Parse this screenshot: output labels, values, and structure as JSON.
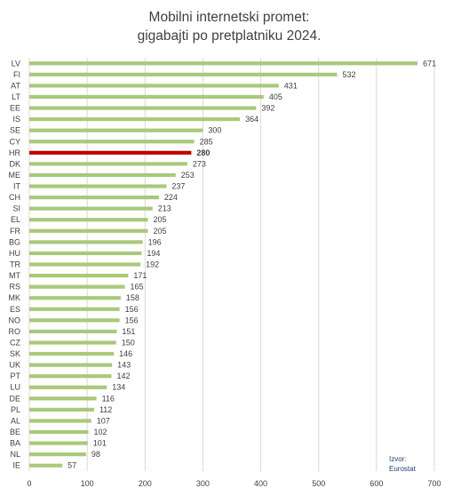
{
  "chart_data": {
    "type": "bar",
    "orientation": "horizontal",
    "title_lines": [
      "Mobilni internetski promet:",
      "gigabajti po pretplatniku 2024."
    ],
    "categories": [
      "LV",
      "FI",
      "AT",
      "LT",
      "EE",
      "IS",
      "SE",
      "CY",
      "HR",
      "DK",
      "ME",
      "IT",
      "CH",
      "SI",
      "EL",
      "FR",
      "BG",
      "HU",
      "TR",
      "MT",
      "RS",
      "MK",
      "ES",
      "NO",
      "RO",
      "CZ",
      "SK",
      "UK",
      "PT",
      "LU",
      "DE",
      "PL",
      "AL",
      "BE",
      "BA",
      "NL",
      "IE"
    ],
    "values": [
      671,
      532,
      431,
      405,
      392,
      364,
      300,
      285,
      280,
      273,
      253,
      237,
      224,
      213,
      205,
      205,
      196,
      194,
      192,
      171,
      165,
      158,
      156,
      156,
      151,
      150,
      146,
      143,
      142,
      134,
      116,
      112,
      107,
      102,
      101,
      98,
      57
    ],
    "highlight": "HR",
    "xlim": [
      0,
      700
    ],
    "xticks": [
      "0",
      "100",
      "200",
      "300",
      "400",
      "500",
      "600",
      "700"
    ],
    "colors": {
      "bar": "#a9c97a",
      "highlight": "#c00000"
    },
    "grid": true,
    "source_lines": [
      "Izvor:",
      "Eurostat"
    ]
  }
}
